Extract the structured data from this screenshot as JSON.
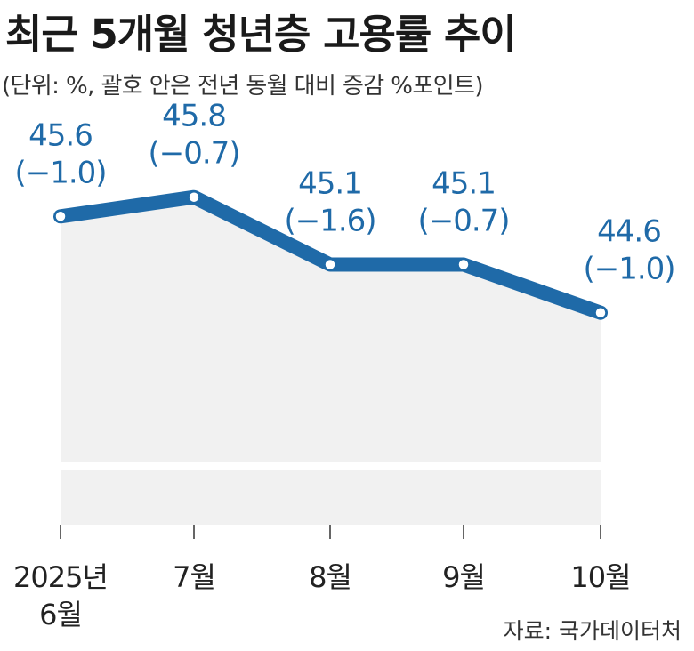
{
  "title": "최근 5개월 청년층 고용률 추이",
  "subtitle": "(단위: %, 괄호 안은 전년 동월 대비 증감 %포인트)",
  "source": "자료: 국가데이터처",
  "colors": {
    "line": "#1f6aa8",
    "area": "#f1f1f1",
    "text": "#1a1a1a"
  },
  "chart_data": {
    "type": "area",
    "title": "최근 5개월 청년층 고용률 추이",
    "categories": [
      [
        "2025년",
        "6월"
      ],
      [
        "7월"
      ],
      [
        "8월"
      ],
      [
        "9월"
      ],
      [
        "10월"
      ]
    ],
    "series": [
      {
        "values": [
          45.6,
          45.8,
          45.1,
          45.1,
          44.6
        ],
        "labels": [
          "45.6",
          "45.8",
          "45.1",
          "45.1",
          "44.6"
        ],
        "changes": [
          "(−1.0)",
          "(−0.7)",
          "(−1.6)",
          "(−0.7)",
          "(−1.0)"
        ]
      }
    ],
    "ylim": [
      42.4,
      46.0
    ],
    "grid": false,
    "legend": "none"
  }
}
